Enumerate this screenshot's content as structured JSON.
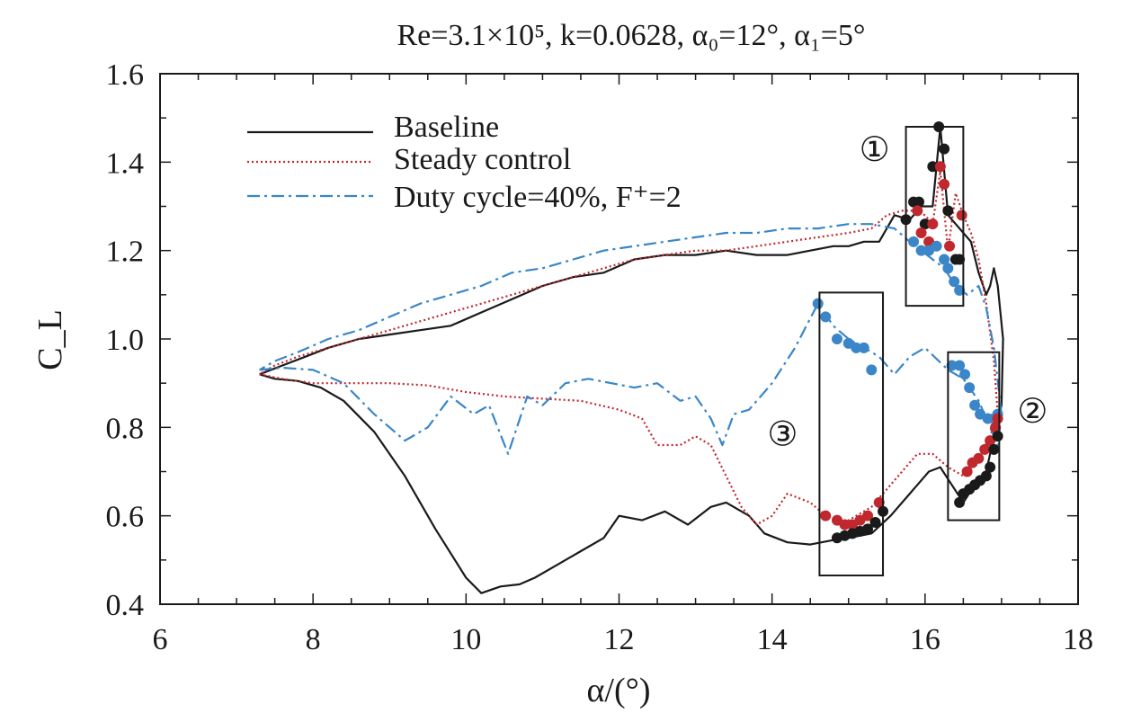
{
  "chart_data": {
    "type": "line",
    "title": "Re=3.1×10⁵, k=0.0628, α₀=12°, α₁=5°",
    "xlabel": "α/(°)",
    "ylabel": "C_L",
    "xlim": [
      6,
      18
    ],
    "ylim": [
      0.4,
      1.6
    ],
    "xticks": [
      "6",
      "8",
      "10",
      "12",
      "14",
      "16",
      "18"
    ],
    "yticks": [
      "0.4",
      "0.6",
      "0.8",
      "1.0",
      "1.2",
      "1.4",
      "1.6"
    ],
    "grid": false,
    "legend_position": "top-left",
    "series": [
      {
        "name": "Baseline",
        "color": "#1a1a1a",
        "style": "solid",
        "x": [
          7.3,
          7.5,
          7.8,
          8.1,
          8.4,
          8.8,
          9.2,
          9.6,
          10.0,
          10.2,
          10.45,
          10.7,
          10.9,
          11.2,
          11.5,
          11.8,
          12.0,
          12.3,
          12.6,
          12.9,
          13.2,
          13.4,
          13.7,
          13.9,
          14.2,
          14.5,
          14.8,
          15.0,
          15.3,
          15.55,
          15.8,
          16.05,
          16.2,
          16.35,
          16.5,
          16.65,
          16.8,
          16.9,
          17.0,
          17.02,
          16.95,
          16.9,
          16.85,
          16.8,
          16.7,
          16.6,
          16.5,
          16.3,
          16.2,
          16.1,
          15.95,
          15.8,
          15.6,
          15.4,
          15.2,
          15.0,
          14.8,
          14.5,
          14.2,
          13.8,
          13.4,
          13.0,
          12.6,
          12.2,
          11.8,
          11.4,
          11.0,
          10.6,
          10.2,
          9.8,
          9.4,
          9.0,
          8.6,
          8.2,
          7.9,
          7.6,
          7.3
        ],
        "y": [
          0.92,
          0.91,
          0.905,
          0.89,
          0.86,
          0.79,
          0.69,
          0.57,
          0.46,
          0.425,
          0.44,
          0.445,
          0.46,
          0.49,
          0.52,
          0.55,
          0.6,
          0.59,
          0.61,
          0.58,
          0.62,
          0.63,
          0.6,
          0.56,
          0.54,
          0.535,
          0.545,
          0.55,
          0.56,
          0.6,
          0.65,
          0.7,
          0.71,
          0.67,
          0.63,
          0.67,
          0.7,
          0.78,
          0.85,
          1.0,
          1.12,
          1.16,
          1.12,
          1.1,
          1.15,
          1.22,
          1.24,
          1.28,
          1.48,
          1.3,
          1.3,
          1.27,
          1.28,
          1.22,
          1.22,
          1.21,
          1.21,
          1.2,
          1.19,
          1.19,
          1.2,
          1.19,
          1.19,
          1.18,
          1.15,
          1.14,
          1.12,
          1.09,
          1.06,
          1.03,
          1.02,
          1.01,
          1.0,
          0.98,
          0.96,
          0.94,
          0.92
        ]
      },
      {
        "name": "Steady control",
        "color": "#c0282d",
        "style": "dotted",
        "x": [
          7.3,
          7.6,
          8.0,
          8.5,
          9.0,
          9.5,
          10.0,
          10.5,
          11.0,
          11.5,
          12.0,
          12.3,
          12.5,
          12.8,
          13.0,
          13.2,
          13.4,
          13.6,
          13.8,
          14.0,
          14.2,
          14.5,
          14.7,
          14.9,
          15.1,
          15.3,
          15.6,
          15.9,
          16.1,
          16.3,
          16.5,
          16.7,
          16.85,
          16.95,
          16.9,
          16.8,
          16.7,
          16.6,
          16.5,
          16.4,
          16.3,
          16.2,
          16.1,
          16.0,
          15.85,
          15.7,
          15.5,
          15.3,
          15.0,
          14.6,
          14.2,
          13.8,
          13.4,
          13.0,
          12.6,
          12.2,
          11.8,
          11.4,
          11.0,
          10.6,
          10.2,
          9.8,
          9.4,
          9.0,
          8.6,
          8.2,
          7.8,
          7.5,
          7.3
        ],
        "y": [
          0.92,
          0.91,
          0.9,
          0.9,
          0.9,
          0.895,
          0.88,
          0.87,
          0.865,
          0.86,
          0.84,
          0.82,
          0.76,
          0.76,
          0.78,
          0.76,
          0.69,
          0.62,
          0.58,
          0.6,
          0.65,
          0.63,
          0.6,
          0.58,
          0.6,
          0.62,
          0.68,
          0.74,
          0.74,
          0.71,
          0.69,
          0.73,
          0.78,
          0.83,
          0.95,
          1.08,
          1.18,
          1.24,
          1.28,
          1.33,
          1.2,
          1.38,
          1.26,
          1.28,
          1.29,
          1.29,
          1.28,
          1.25,
          1.24,
          1.23,
          1.22,
          1.21,
          1.2,
          1.2,
          1.19,
          1.18,
          1.16,
          1.14,
          1.12,
          1.1,
          1.08,
          1.06,
          1.04,
          1.02,
          1.0,
          0.98,
          0.96,
          0.94,
          0.92
        ]
      },
      {
        "name": "Duty cycle=40%, F⁺=2",
        "color": "#3a86c8",
        "style": "dashdot",
        "x": [
          7.3,
          7.6,
          8.0,
          8.4,
          8.8,
          9.2,
          9.5,
          9.8,
          10.1,
          10.3,
          10.55,
          10.8,
          11.0,
          11.3,
          11.6,
          11.9,
          12.2,
          12.5,
          12.8,
          13.0,
          13.2,
          13.35,
          13.5,
          13.7,
          14.0,
          14.3,
          14.6,
          14.8,
          15.0,
          15.2,
          15.4,
          15.6,
          15.8,
          16.0,
          16.3,
          16.5,
          16.7,
          16.85,
          16.95,
          17.0,
          16.9,
          16.8,
          16.7,
          16.55,
          16.4,
          16.25,
          16.1,
          15.95,
          15.8,
          15.6,
          15.3,
          15.0,
          14.6,
          14.2,
          13.8,
          13.4,
          13.0,
          12.6,
          12.2,
          11.8,
          11.4,
          11.0,
          10.6,
          10.2,
          9.8,
          9.4,
          9.0,
          8.6,
          8.2,
          7.8,
          7.5,
          7.3
        ],
        "y": [
          0.93,
          0.935,
          0.93,
          0.9,
          0.83,
          0.77,
          0.8,
          0.87,
          0.83,
          0.85,
          0.74,
          0.87,
          0.85,
          0.9,
          0.91,
          0.9,
          0.89,
          0.9,
          0.86,
          0.87,
          0.82,
          0.76,
          0.83,
          0.84,
          0.9,
          0.98,
          1.08,
          1.03,
          1.0,
          0.98,
          0.96,
          0.92,
          0.96,
          0.98,
          0.93,
          0.91,
          0.86,
          0.8,
          0.76,
          0.83,
          0.98,
          1.07,
          1.12,
          1.1,
          1.12,
          1.16,
          1.18,
          1.2,
          1.22,
          1.25,
          1.26,
          1.26,
          1.25,
          1.25,
          1.24,
          1.24,
          1.23,
          1.22,
          1.21,
          1.2,
          1.18,
          1.16,
          1.15,
          1.12,
          1.1,
          1.08,
          1.05,
          1.02,
          1.0,
          0.97,
          0.95,
          0.93
        ]
      }
    ],
    "marker_points": [
      {
        "color": "#1a1a1a",
        "points": [
          [
            15.75,
            1.27
          ],
          [
            15.85,
            1.31
          ],
          [
            15.92,
            1.31
          ],
          [
            16.0,
            1.26
          ],
          [
            16.1,
            1.39
          ],
          [
            16.18,
            1.48
          ],
          [
            16.25,
            1.43
          ],
          [
            16.3,
            1.29
          ],
          [
            16.4,
            1.18
          ],
          [
            16.45,
            1.18
          ]
        ]
      },
      {
        "color": "#c0282d",
        "points": [
          [
            15.9,
            1.29
          ],
          [
            15.95,
            1.24
          ],
          [
            16.05,
            1.22
          ],
          [
            16.1,
            1.26
          ],
          [
            16.2,
            1.39
          ],
          [
            16.25,
            1.35
          ],
          [
            16.32,
            1.21
          ],
          [
            16.48,
            1.28
          ]
        ]
      },
      {
        "color": "#3a86c8",
        "points": [
          [
            15.85,
            1.22
          ],
          [
            15.95,
            1.2
          ],
          [
            16.05,
            1.2
          ],
          [
            16.15,
            1.21
          ],
          [
            16.25,
            1.18
          ],
          [
            16.3,
            1.16
          ],
          [
            16.38,
            1.13
          ],
          [
            16.45,
            1.11
          ]
        ]
      },
      {
        "color": "#3a86c8",
        "points": [
          [
            14.6,
            1.08
          ],
          [
            14.7,
            1.05
          ],
          [
            14.85,
            1.0
          ],
          [
            15.0,
            0.99
          ],
          [
            15.1,
            0.98
          ],
          [
            15.2,
            0.98
          ],
          [
            15.3,
            0.93
          ]
        ]
      },
      {
        "color": "#c0282d",
        "points": [
          [
            14.7,
            0.6
          ],
          [
            14.85,
            0.59
          ],
          [
            14.95,
            0.58
          ],
          [
            15.05,
            0.58
          ],
          [
            15.15,
            0.59
          ],
          [
            15.25,
            0.6
          ],
          [
            15.4,
            0.63
          ]
        ]
      },
      {
        "color": "#1a1a1a",
        "points": [
          [
            14.85,
            0.55
          ],
          [
            14.95,
            0.555
          ],
          [
            15.05,
            0.56
          ],
          [
            15.15,
            0.565
          ],
          [
            15.25,
            0.57
          ],
          [
            15.35,
            0.585
          ],
          [
            15.45,
            0.61
          ]
        ]
      },
      {
        "color": "#3a86c8",
        "points": [
          [
            16.35,
            0.94
          ],
          [
            16.45,
            0.94
          ],
          [
            16.52,
            0.92
          ],
          [
            16.58,
            0.89
          ],
          [
            16.65,
            0.85
          ],
          [
            16.72,
            0.83
          ],
          [
            16.82,
            0.82
          ],
          [
            16.9,
            0.82
          ],
          [
            16.95,
            0.83
          ]
        ]
      },
      {
        "color": "#c0282d",
        "points": [
          [
            16.55,
            0.7
          ],
          [
            16.62,
            0.72
          ],
          [
            16.7,
            0.73
          ],
          [
            16.78,
            0.75
          ],
          [
            16.85,
            0.77
          ],
          [
            16.92,
            0.8
          ],
          [
            16.95,
            0.82
          ]
        ]
      },
      {
        "color": "#1a1a1a",
        "points": [
          [
            16.45,
            0.63
          ],
          [
            16.5,
            0.65
          ],
          [
            16.58,
            0.66
          ],
          [
            16.65,
            0.67
          ],
          [
            16.72,
            0.68
          ],
          [
            16.8,
            0.69
          ],
          [
            16.85,
            0.71
          ],
          [
            16.9,
            0.75
          ],
          [
            16.95,
            0.78
          ]
        ]
      }
    ],
    "annotation_boxes": [
      {
        "label": "①",
        "x": [
          15.75,
          16.5
        ],
        "y": [
          1.075,
          1.48
        ]
      },
      {
        "label": "②",
        "x": [
          16.3,
          16.97
        ],
        "y": [
          0.59,
          0.97
        ]
      },
      {
        "label": "③",
        "x": [
          14.62,
          15.45
        ],
        "y": [
          0.465,
          1.105
        ]
      }
    ]
  }
}
